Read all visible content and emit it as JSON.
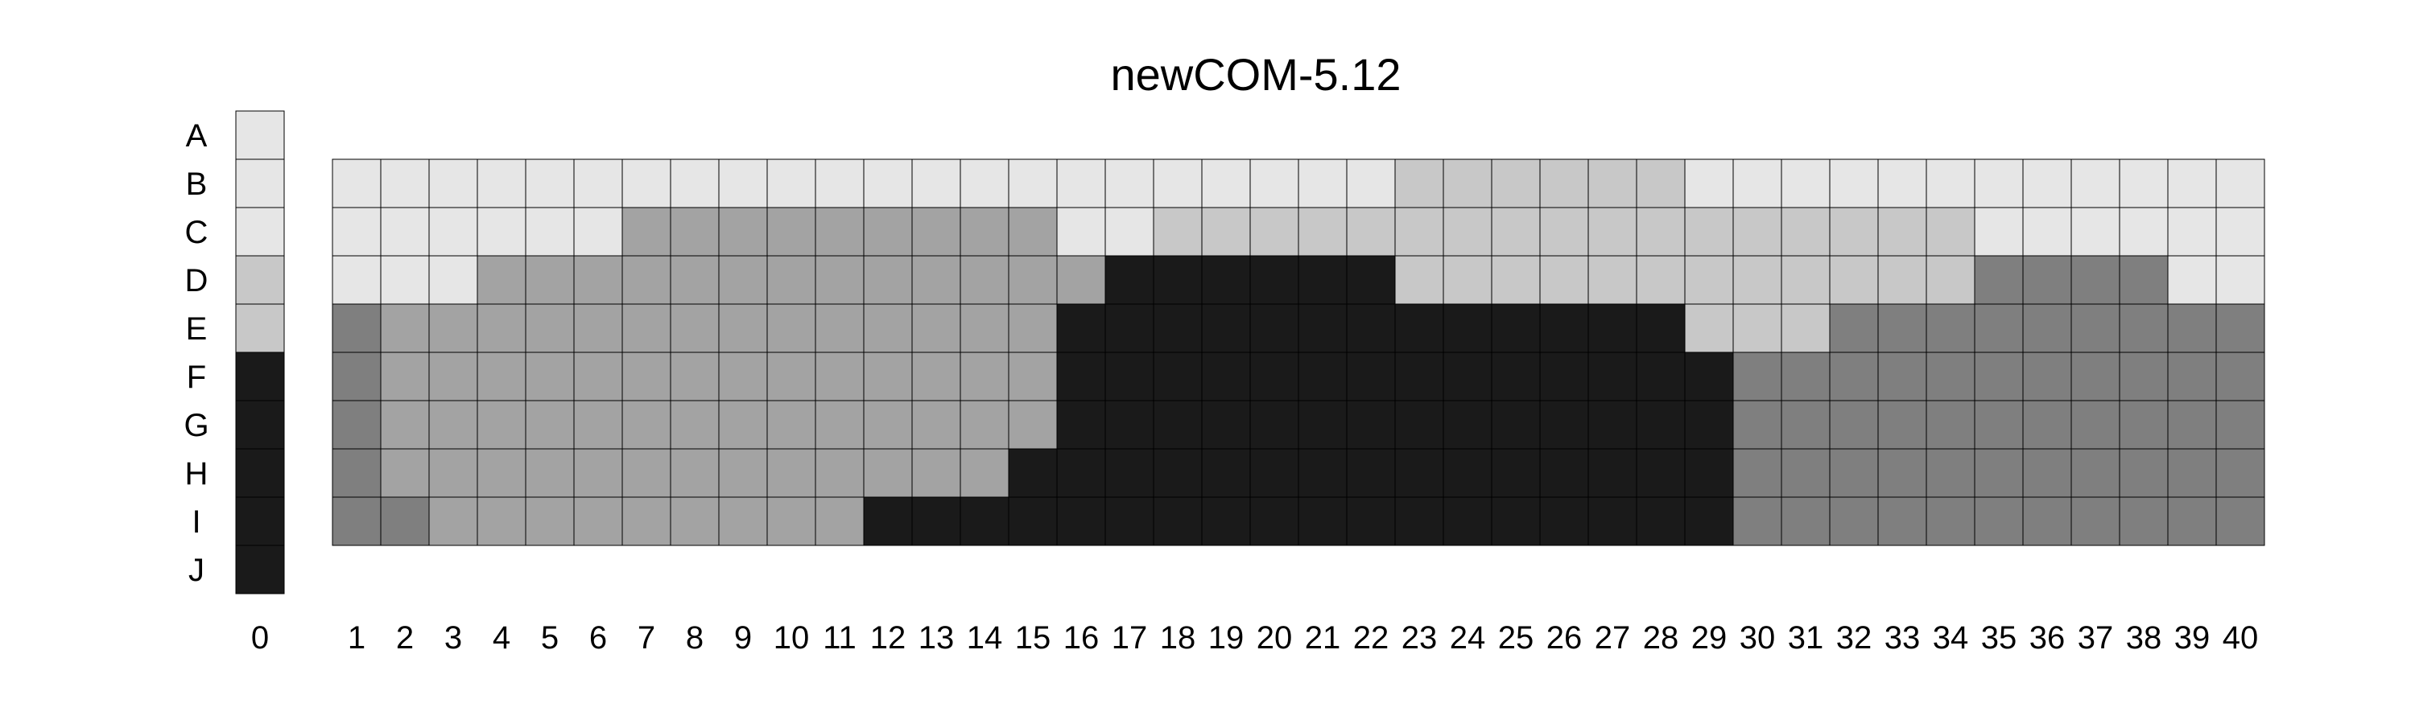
{
  "chart_data": {
    "type": "heatmap",
    "title": "newCOM-5.12",
    "rows": [
      "A",
      "B",
      "C",
      "D",
      "E",
      "F",
      "G",
      "H",
      "I",
      "J"
    ],
    "key_column_label": "0",
    "key_column": [
      "#e6e6e6",
      "#e6e6e6",
      "#e6e6e6",
      "#c8c8c8",
      "#c8c8c8",
      "#1a1a1a",
      "#1a1a1a",
      "#1a1a1a",
      "#1a1a1a",
      "#1a1a1a"
    ],
    "columns": [
      "1",
      "2",
      "3",
      "4",
      "5",
      "6",
      "7",
      "8",
      "9",
      "10",
      "11",
      "12",
      "13",
      "14",
      "15",
      "16",
      "17",
      "18",
      "19",
      "20",
      "21",
      "22",
      "23",
      "24",
      "25",
      "26",
      "27",
      "28",
      "29",
      "30",
      "31",
      "32",
      "33",
      "34",
      "35",
      "36",
      "37",
      "38",
      "39",
      "40"
    ],
    "grid_rows": [
      "B",
      "C",
      "D",
      "E",
      "F",
      "G",
      "H",
      "I"
    ],
    "colors": {
      "a": "#e6e6e6",
      "b": "#c8c8c8",
      "c": "#a3a3a3",
      "d": "#7f7f7f",
      "e": "#1a1a1a"
    },
    "grid": [
      "aaaaaaaaaaaaaaaaaaaaaabbbbbbaaaaaaaaaaaa",
      "aaaaaacccccccccaabbbbbbbbbbbbbbbbbaaaaaa",
      "aaaccccccccccccceeeeeebbbbbbbbbbbbddddaa",
      "dcccccccccccccceeeeeeeeeeeeebbbddddddddd",
      "dcccccccccccccceeeeeeeeeeeeeeddddddddddd",
      "dcccccccccccccceeeeeeeeeeeeeeddddddddddd",
      "dccccccccccccceeeeeeeeeeeeeeeddddddddddd",
      "ddccccccccceeeeeeeeeeeeeeeeeeddddddddddd"
    ]
  }
}
